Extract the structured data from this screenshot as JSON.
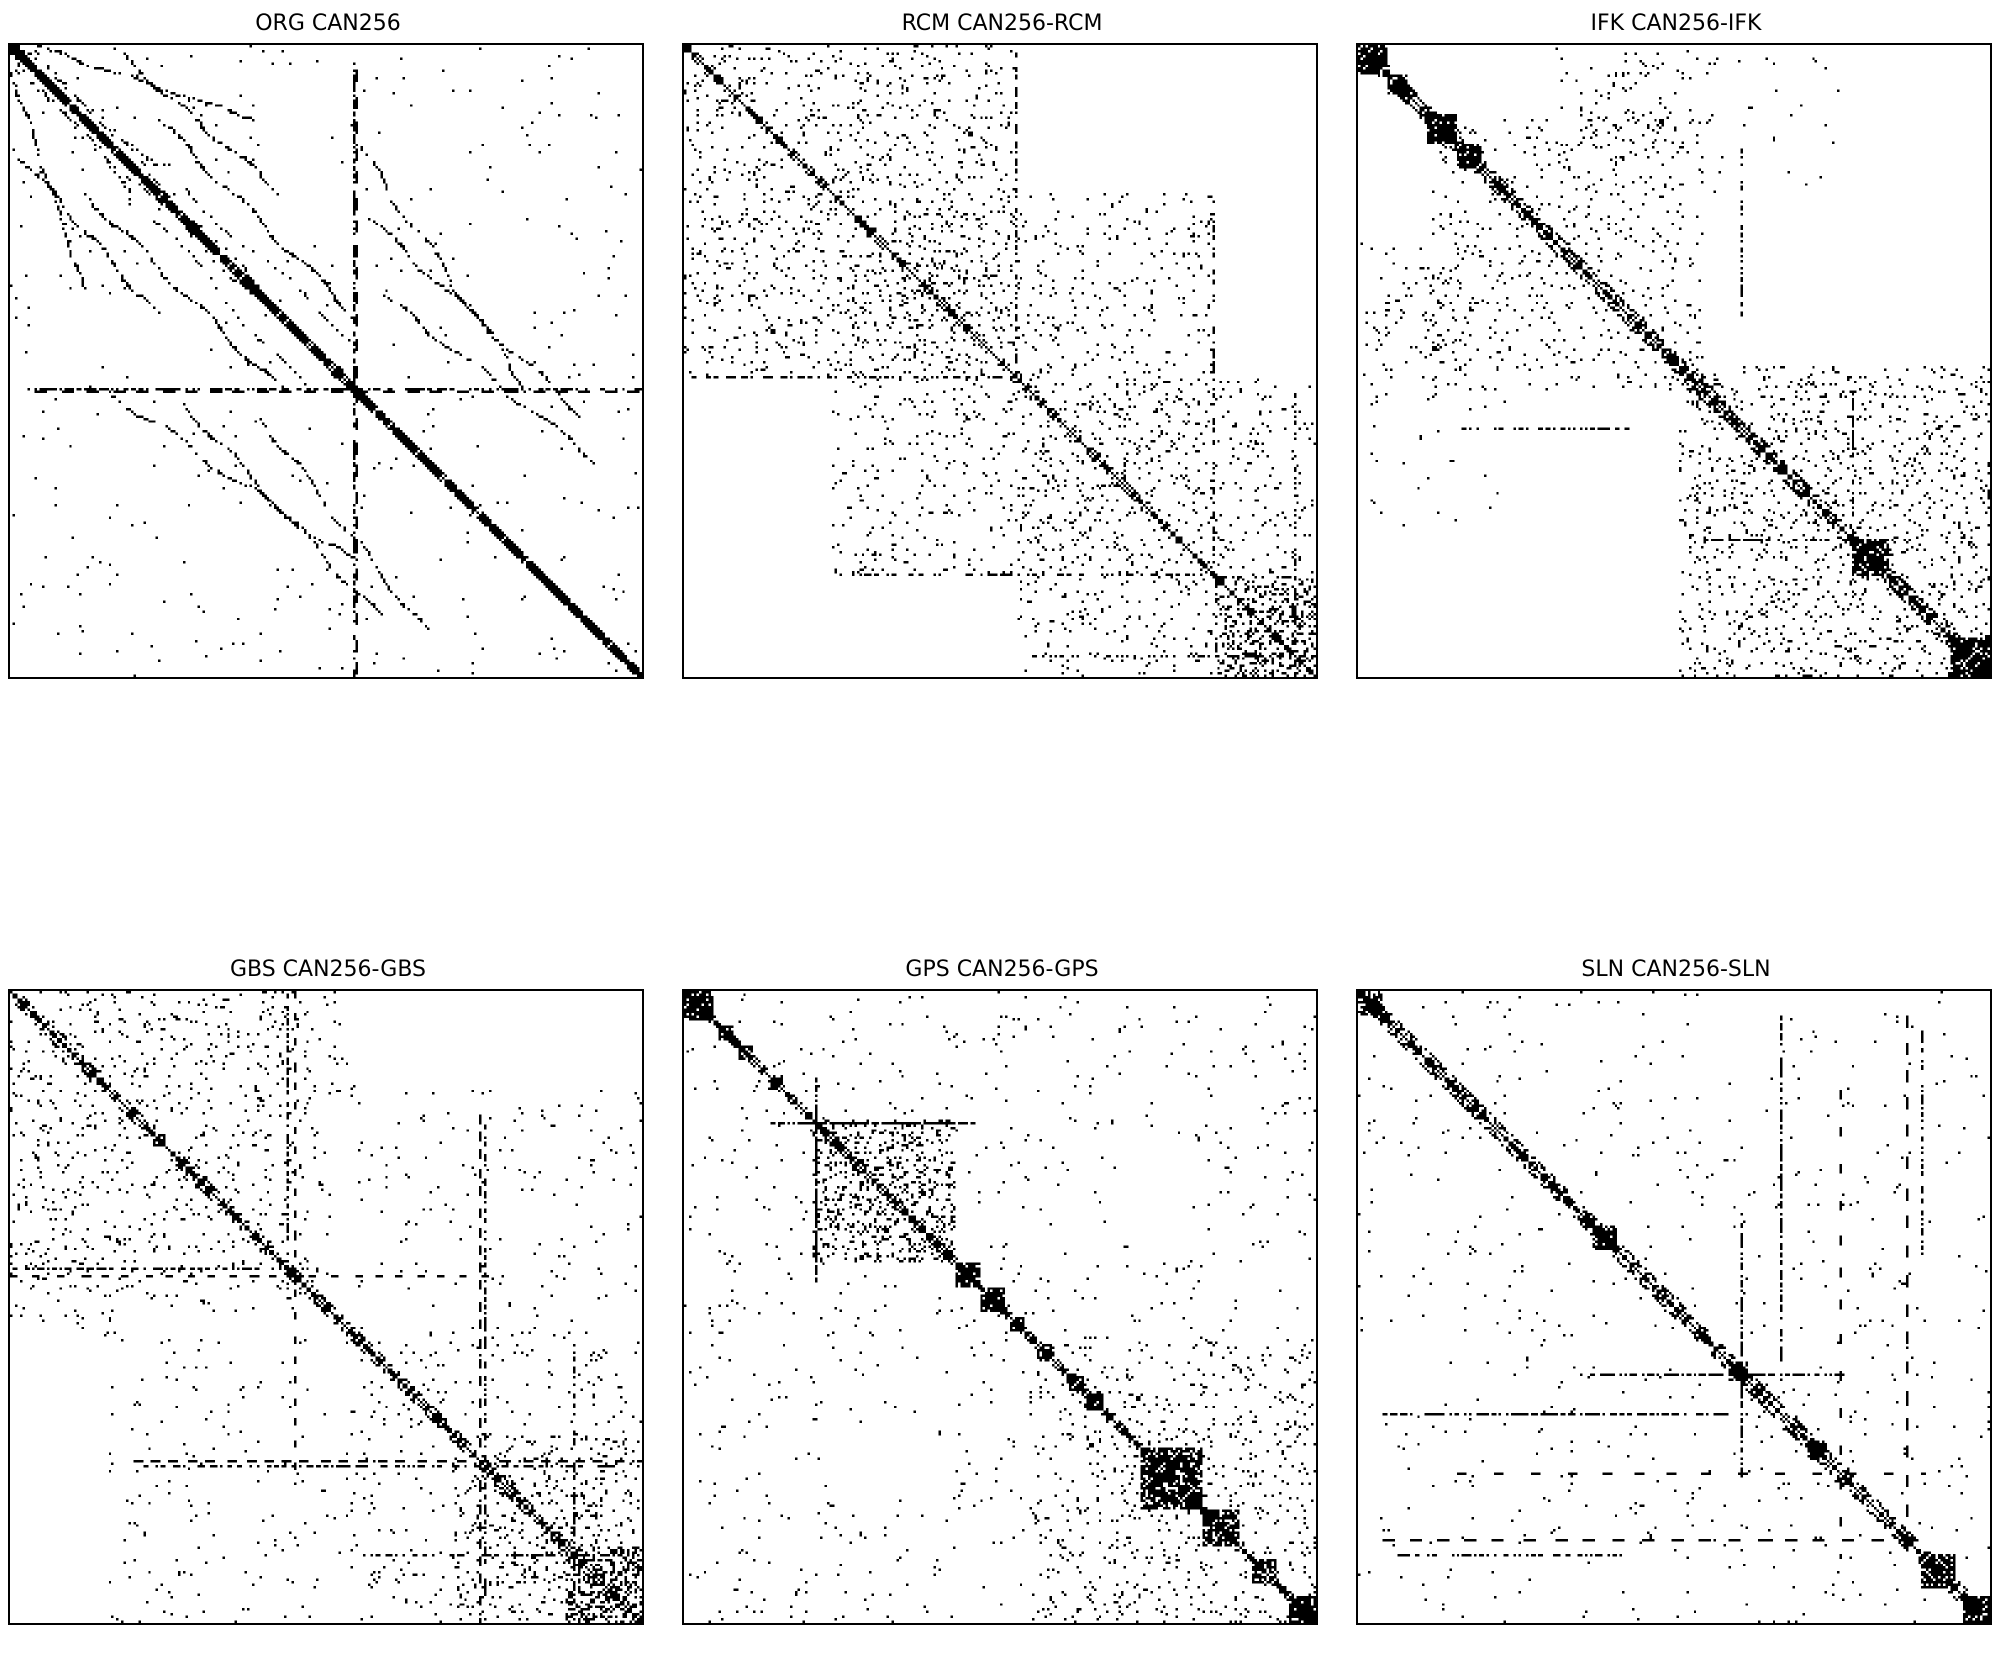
{
  "chart_data": [
    {
      "type": "heatmap",
      "kind": "sparsity-pattern",
      "title": "ORG CAN256",
      "pattern": "org",
      "n": 256,
      "color": "#000000",
      "grid": false
    },
    {
      "type": "heatmap",
      "kind": "sparsity-pattern",
      "title": "RCM CAN256-RCM",
      "pattern": "rcm",
      "n": 256,
      "color": "#000000",
      "grid": false
    },
    {
      "type": "heatmap",
      "kind": "sparsity-pattern",
      "title": "IFK CAN256-IFK",
      "pattern": "ifk",
      "n": 256,
      "color": "#000000",
      "grid": false
    },
    {
      "type": "heatmap",
      "kind": "sparsity-pattern",
      "title": "GBS CAN256-GBS",
      "pattern": "gbs",
      "n": 256,
      "color": "#000000",
      "grid": false
    },
    {
      "type": "heatmap",
      "kind": "sparsity-pattern",
      "title": "GPS CAN256-GPS",
      "pattern": "gps",
      "n": 256,
      "color": "#000000",
      "grid": false
    },
    {
      "type": "heatmap",
      "kind": "sparsity-pattern",
      "title": "SLN CAN256-SLN",
      "pattern": "sln",
      "n": 256,
      "color": "#000000",
      "grid": false
    }
  ]
}
